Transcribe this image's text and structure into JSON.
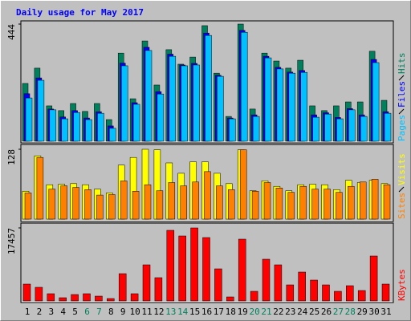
{
  "chart_data": [
    {
      "type": "bar",
      "title": "Daily usage for May 2017",
      "series": [
        {
          "name": "Hits",
          "color": "#00805c",
          "values": [
            219,
            277,
            134,
            116,
            143,
            113,
            143,
            82,
            334,
            161,
            380,
            213,
            347,
            292,
            319,
            438,
            258,
            94,
            444,
            122,
            334,
            304,
            277,
            307,
            134,
            116,
            134,
            149,
            149,
            341,
            155
          ]
        },
        {
          "name": "Files",
          "color": "#0000ff",
          "values": [
            180,
            240,
            122,
            92,
            116,
            88,
            112,
            58,
            296,
            146,
            356,
            188,
            330,
            289,
            295,
            410,
            250,
            88,
            420,
            100,
            322,
            280,
            262,
            268,
            100,
            108,
            90,
            124,
            100,
            310,
            112
          ]
        },
        {
          "name": "Pages",
          "color": "#00c0ff",
          "values": [
            164,
            231,
            119,
            85,
            109,
            82,
            106,
            49,
            286,
            140,
            344,
            179,
            322,
            286,
            289,
            401,
            246,
            85,
            413,
            94,
            316,
            274,
            258,
            261,
            91,
            103,
            85,
            119,
            94,
            298,
            106
          ]
        }
      ],
      "ylim": [
        0,
        444
      ],
      "yticks": [
        444
      ]
    },
    {
      "type": "bar",
      "series": [
        {
          "name": "Visits",
          "color": "#ffff00",
          "values": [
            51,
            116,
            63,
            64,
            65,
            63,
            55,
            48,
            99,
            113,
            128,
            127,
            103,
            84,
            105,
            105,
            84,
            65,
            127,
            52,
            70,
            60,
            52,
            63,
            64,
            63,
            54,
            71,
            67,
            71,
            65
          ]
        },
        {
          "name": "Sites",
          "color": "#ff8000",
          "values": [
            48,
            113,
            55,
            61,
            58,
            54,
            44,
            45,
            70,
            51,
            63,
            52,
            67,
            61,
            68,
            87,
            61,
            54,
            127,
            51,
            67,
            57,
            49,
            60,
            55,
            55,
            49,
            60,
            68,
            73,
            63
          ]
        }
      ],
      "ylim": [
        0,
        128
      ],
      "yticks": [
        128
      ]
    },
    {
      "type": "bar",
      "categories": [
        "1",
        "2",
        "3",
        "4",
        "5",
        "6",
        "7",
        "8",
        "9",
        "10",
        "11",
        "12",
        "13",
        "14",
        "15",
        "16",
        "17",
        "18",
        "19",
        "20",
        "21",
        "22",
        "23",
        "24",
        "25",
        "26",
        "27",
        "28",
        "29",
        "30",
        "31"
      ],
      "category_colors": [
        "#000000",
        "#000000",
        "#000000",
        "#000000",
        "#000000",
        "#00805c",
        "#00805c",
        "#000000",
        "#000000",
        "#000000",
        "#000000",
        "#000000",
        "#00805c",
        "#00805c",
        "#000000",
        "#000000",
        "#000000",
        "#000000",
        "#000000",
        "#00805c",
        "#00805c",
        "#000000",
        "#000000",
        "#000000",
        "#000000",
        "#000000",
        "#00805c",
        "#00805c",
        "#000000",
        "#000000",
        "#000000"
      ],
      "series": [
        {
          "name": "KBytes",
          "color": "#ff0000",
          "values": [
            4028,
            3260,
            1726,
            767,
            1534,
            1726,
            1151,
            575,
            6521,
            1726,
            8631,
            5562,
            16880,
            15536,
            17457,
            15153,
            7673,
            959,
            14770,
            2302,
            9975,
            8631,
            3836,
            6906,
            4987,
            3836,
            2302,
            3645,
            2494,
            10742,
            4028
          ]
        }
      ],
      "ylim": [
        0,
        17457
      ],
      "yticks": [
        17457
      ]
    }
  ]
}
